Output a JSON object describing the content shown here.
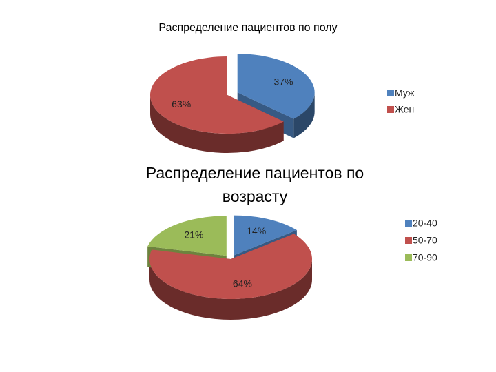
{
  "chart_data": [
    {
      "type": "pie",
      "title": "Распределение пациентов по полу",
      "categories": [
        "Муж",
        "Жен"
      ],
      "values": [
        37,
        63
      ],
      "value_labels": [
        "37%",
        "63%"
      ],
      "colors": [
        "#4f81bd",
        "#c0504d"
      ],
      "legend": "right"
    },
    {
      "type": "pie",
      "title": "Распределение пациентов по возрасту",
      "categories": [
        "20-40",
        "50-70",
        "70-90"
      ],
      "values": [
        14,
        64,
        21
      ],
      "value_labels": [
        "14%",
        "64%",
        "21%"
      ],
      "colors": [
        "#4f81bd",
        "#c0504d",
        "#9bbb59"
      ],
      "legend": "right"
    }
  ]
}
